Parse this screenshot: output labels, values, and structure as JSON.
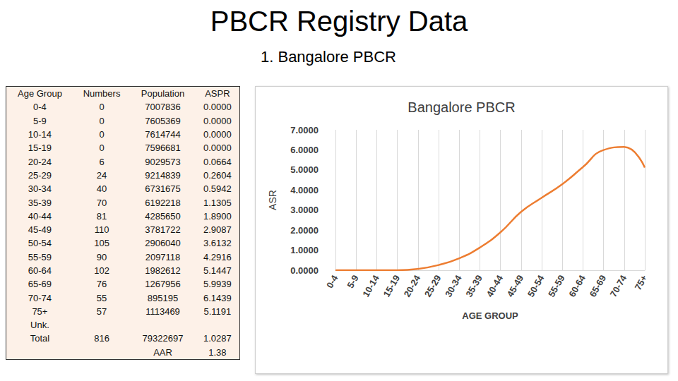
{
  "header": {
    "title": "PBCR Registry Data",
    "subtitle": "1. Bangalore PBCR"
  },
  "table": {
    "columns": [
      "Age Group",
      "Numbers",
      "Population",
      "ASPR"
    ],
    "rows": [
      [
        "0-4",
        "0",
        "7007836",
        "0.0000"
      ],
      [
        "5-9",
        "0",
        "7605369",
        "0.0000"
      ],
      [
        "10-14",
        "0",
        "7614744",
        "0.0000"
      ],
      [
        "15-19",
        "0",
        "7596681",
        "0.0000"
      ],
      [
        "20-24",
        "6",
        "9029573",
        "0.0664"
      ],
      [
        "25-29",
        "24",
        "9214839",
        "0.2604"
      ],
      [
        "30-34",
        "40",
        "6731675",
        "0.5942"
      ],
      [
        "35-39",
        "70",
        "6192218",
        "1.1305"
      ],
      [
        "40-44",
        "81",
        "4285650",
        "1.8900"
      ],
      [
        "45-49",
        "110",
        "3781722",
        "2.9087"
      ],
      [
        "50-54",
        "105",
        "2906040",
        "3.6132"
      ],
      [
        "55-59",
        "90",
        "2097118",
        "4.2916"
      ],
      [
        "60-64",
        "102",
        "1982612",
        "5.1447"
      ],
      [
        "65-69",
        "76",
        "1267956",
        "5.9939"
      ],
      [
        "70-74",
        "55",
        "895195",
        "6.1439"
      ],
      [
        "75+",
        "57",
        "1113469",
        "5.1191"
      ],
      [
        "Unk.",
        null,
        null,
        null
      ],
      [
        "Total",
        "816",
        "79322697",
        "1.0287"
      ],
      [
        null,
        null,
        "AAR",
        "1.38"
      ]
    ]
  },
  "chart_data": {
    "type": "line",
    "title": "Bangalore PBCR",
    "x_label": "AGE GROUP",
    "y_label": "ASR",
    "categories": [
      "0-4",
      "5-9",
      "10-14",
      "15-19",
      "20-24",
      "25-29",
      "30-34",
      "35-39",
      "40-44",
      "45-49",
      "50-54",
      "55-59",
      "60-64",
      "65-69",
      "70-74",
      "75+"
    ],
    "values": [
      0.0,
      0.0,
      0.0,
      0.0,
      0.0664,
      0.2604,
      0.5942,
      1.1305,
      1.89,
      2.9087,
      3.6132,
      4.2916,
      5.1447,
      5.9939,
      6.1439,
      5.1191
    ],
    "color": "#ed7d31",
    "marker": "none",
    "ylim": [
      0,
      7
    ],
    "yticks": [
      {
        "value": 0,
        "label": "0.0000"
      },
      {
        "value": 1,
        "label": "1.0000"
      },
      {
        "value": 2,
        "label": "2.0000"
      },
      {
        "value": 3,
        "label": "3.0000"
      },
      {
        "value": 4,
        "label": "4.0000"
      },
      {
        "value": 5,
        "label": "5.0000"
      },
      {
        "value": 6,
        "label": "6.0000"
      },
      {
        "value": 7,
        "label": "7.0000"
      }
    ],
    "grid": true
  }
}
